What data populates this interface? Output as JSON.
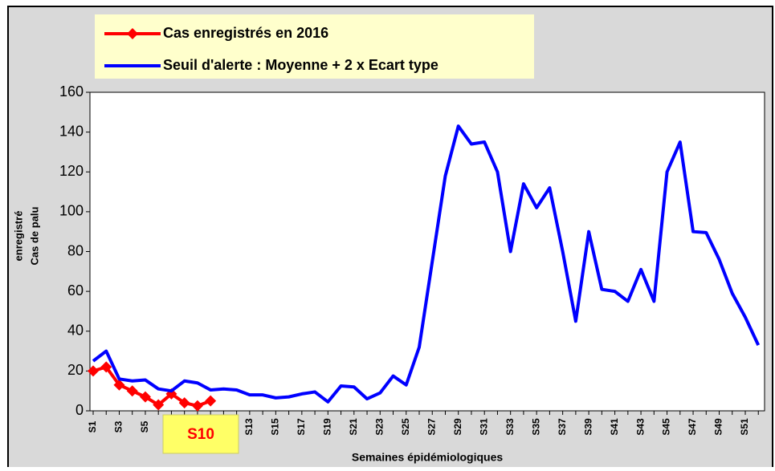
{
  "chart_data": {
    "type": "line",
    "ylabel": [
      "Cas de palu",
      "enregistré"
    ],
    "xlabel": "Semaines épidémiologiques",
    "categories": [
      "S1",
      null,
      "S3",
      null,
      "S5",
      null,
      null,
      null,
      null,
      null,
      null,
      null,
      "S13",
      null,
      "S15",
      null,
      "S17",
      null,
      "S19",
      null,
      "S21",
      null,
      "S23",
      null,
      "S25",
      null,
      "S27",
      null,
      "S29",
      null,
      "S31",
      null,
      "S33",
      null,
      "S35",
      null,
      "S37",
      null,
      "S39",
      null,
      "S41",
      null,
      "S43",
      null,
      "S45",
      null,
      "S47",
      null,
      "S49",
      null,
      "S51",
      null
    ],
    "series": [
      {
        "name": "Cas enregistrés en 2016",
        "color": "#ff0000",
        "marker": "diamond",
        "values": [
          20,
          22,
          13,
          10,
          7,
          3,
          8.5,
          4,
          2.5,
          5,
          null,
          null,
          null,
          null,
          null,
          null,
          null,
          null,
          null,
          null,
          null,
          null,
          null,
          null,
          null,
          null,
          null,
          null,
          null,
          null,
          null,
          null,
          null,
          null,
          null,
          null,
          null,
          null,
          null,
          null,
          null,
          null,
          null,
          null,
          null,
          null,
          null,
          null,
          null,
          null,
          null,
          null
        ]
      },
      {
        "name": "Seuil d'alerte : Moyenne + 2 x Ecart type",
        "color": "#0000ff",
        "values": [
          25,
          30,
          16,
          15,
          15.5,
          11,
          10,
          15,
          14,
          10.5,
          11,
          10.5,
          8,
          8,
          6.5,
          7,
          8.5,
          9.5,
          4.5,
          12.5,
          12,
          6,
          9,
          17.5,
          13,
          32,
          75,
          118,
          143,
          134,
          135,
          120,
          80,
          114,
          102,
          112,
          80,
          45,
          90,
          61,
          60,
          55,
          71,
          55,
          120,
          135,
          90,
          89.5,
          76,
          59,
          47,
          33
        ]
      }
    ],
    "ylim": [
      0,
      160
    ],
    "yticks": [
      0,
      20,
      40,
      60,
      80,
      100,
      120,
      140,
      160
    ],
    "annotation": "S10"
  }
}
